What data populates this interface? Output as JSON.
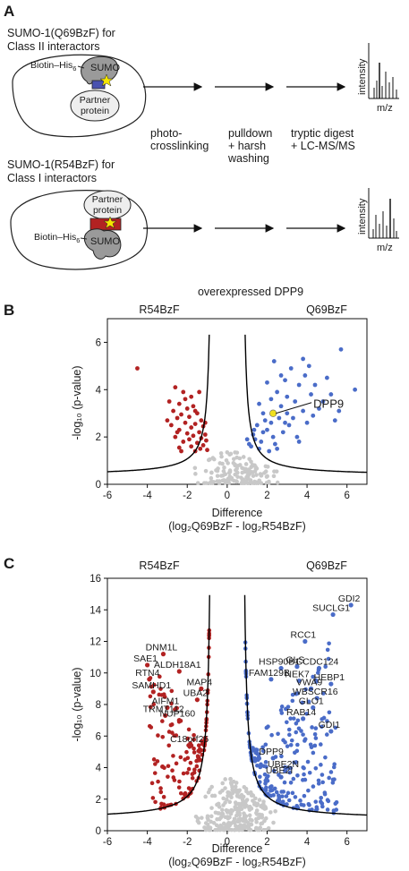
{
  "panel_a": {
    "letter": "A",
    "top": {
      "title_line1": "SUMO-1(Q69BzF) for",
      "title_line2": "Class II interactors",
      "tag_label": "Biotin–His",
      "tag_subscript": "6",
      "sumo_label": "SUMO",
      "partner_line1": "Partner",
      "partner_line2": "protein"
    },
    "bottom": {
      "title_line1": "SUMO-1(R54BzF) for",
      "title_line2": "Class I interactors",
      "tag_label": "Biotin–His",
      "tag_subscript": "6",
      "sumo_label": "SUMO",
      "partner_line1": "Partner",
      "partner_line2": "protein"
    },
    "steps": [
      {
        "line1": "photo-",
        "line2": "crosslinking"
      },
      {
        "line1": "pulldown",
        "line2": "+ harsh",
        "line3": "washing"
      },
      {
        "line1": "tryptic digest",
        "line2": "+ LC-MS/MS"
      }
    ],
    "spectrum": {
      "ylabel": "intensity",
      "xlabel": "m/z"
    },
    "colors": {
      "sumo": "#9a9a9a",
      "q69_linker": "#4a52b0",
      "r54_linker": "#b22222",
      "star": "#f5e600"
    }
  },
  "panel_b": {
    "letter": "B",
    "chart_data": {
      "type": "scatter",
      "title": "overexpressed DPP9",
      "left_group": "R54BzF",
      "right_group": "Q69BzF",
      "xlabel_line1": "Difference",
      "xlabel_line2": "(log₂Q69BzF - log₂R54BzF)",
      "ylabel": "-log₁₀ (p-value)",
      "xlim": [
        -6,
        7
      ],
      "ylim": [
        0,
        7
      ],
      "xticks": [
        "-6",
        "-4",
        "-2",
        "0",
        "2",
        "4",
        "6"
      ],
      "yticks": [
        "0",
        "2",
        "4",
        "6"
      ],
      "highlight": {
        "label": "DPP9",
        "x": 2.3,
        "y": 3.0,
        "color": "#f0e020"
      },
      "colors": {
        "left": "#b22222",
        "right": "#4a6cc8",
        "ns": "#c8c8c8",
        "cutoff": "#000000"
      },
      "left_points": [
        [
          -4.5,
          4.9
        ],
        [
          -2.6,
          4.1
        ],
        [
          -2.2,
          3.9
        ],
        [
          -1.8,
          3.7
        ],
        [
          -2.9,
          3.5
        ],
        [
          -2.4,
          3.4
        ],
        [
          -1.7,
          3.3
        ],
        [
          -2.0,
          3.2
        ],
        [
          -2.7,
          3.1
        ],
        [
          -1.5,
          3.0
        ],
        [
          -2.3,
          2.95
        ],
        [
          -1.9,
          2.85
        ],
        [
          -2.5,
          2.8
        ],
        [
          -1.3,
          2.7
        ],
        [
          -2.1,
          2.6
        ],
        [
          -1.6,
          2.55
        ],
        [
          -2.8,
          2.5
        ],
        [
          -1.2,
          2.45
        ],
        [
          -1.8,
          2.4
        ],
        [
          -2.4,
          2.3
        ],
        [
          -1.4,
          2.2
        ],
        [
          -2.0,
          2.15
        ],
        [
          -1.1,
          2.1
        ],
        [
          -1.7,
          2.05
        ],
        [
          -2.6,
          2.0
        ],
        [
          -1.3,
          1.95
        ],
        [
          -1.9,
          1.9
        ],
        [
          -1.05,
          1.85
        ],
        [
          -2.2,
          1.8
        ],
        [
          -1.5,
          1.75
        ],
        [
          -1.2,
          1.65
        ],
        [
          -1.8,
          1.6
        ],
        [
          -2.4,
          1.55
        ],
        [
          -1.35,
          1.5
        ],
        [
          -1.0,
          1.45
        ],
        [
          -1.6,
          1.4
        ],
        [
          -2.1,
          3.6
        ],
        [
          -1.4,
          3.9
        ],
        [
          -2.5,
          2.2
        ],
        [
          -3.0,
          2.7
        ],
        [
          -1.1,
          2.6
        ],
        [
          -1.6,
          3.1
        ],
        [
          -2.3,
          1.4
        ]
      ],
      "right_points": [
        [
          5.7,
          5.7
        ],
        [
          3.8,
          5.3
        ],
        [
          5.0,
          4.5
        ],
        [
          6.4,
          4.0
        ],
        [
          3.2,
          4.9
        ],
        [
          2.9,
          4.4
        ],
        [
          3.6,
          4.2
        ],
        [
          4.2,
          3.8
        ],
        [
          2.5,
          3.9
        ],
        [
          3.4,
          3.5
        ],
        [
          4.6,
          3.2
        ],
        [
          5.4,
          2.7
        ],
        [
          2.2,
          3.6
        ],
        [
          1.8,
          3.0
        ],
        [
          2.6,
          2.8
        ],
        [
          3.0,
          3.0
        ],
        [
          4.0,
          2.6
        ],
        [
          1.5,
          2.5
        ],
        [
          2.0,
          2.3
        ],
        [
          2.8,
          2.2
        ],
        [
          3.5,
          2.0
        ],
        [
          1.3,
          2.1
        ],
        [
          1.7,
          1.8
        ],
        [
          2.4,
          1.7
        ],
        [
          1.2,
          1.6
        ],
        [
          1.6,
          1.5
        ],
        [
          2.1,
          1.4
        ],
        [
          3.1,
          2.5
        ],
        [
          4.3,
          2.9
        ],
        [
          3.8,
          3.1
        ],
        [
          1.9,
          2.7
        ],
        [
          2.3,
          2.0
        ],
        [
          1.4,
          1.9
        ],
        [
          2.7,
          3.3
        ],
        [
          3.3,
          2.8
        ],
        [
          4.8,
          3.5
        ],
        [
          5.6,
          3.1
        ],
        [
          1.1,
          1.7
        ],
        [
          2.0,
          4.3
        ],
        [
          3.0,
          3.7
        ],
        [
          3.9,
          4.6
        ],
        [
          1.6,
          3.4
        ],
        [
          2.9,
          2.6
        ],
        [
          1.35,
          2.3
        ],
        [
          2.2,
          2.6
        ],
        [
          4.4,
          4.2
        ],
        [
          3.6,
          1.8
        ],
        [
          1.0,
          1.9
        ],
        [
          2.5,
          1.5
        ],
        [
          1.8,
          2.2
        ],
        [
          2.7,
          4.6
        ],
        [
          4.1,
          5.0
        ],
        [
          2.35,
          5.2
        ],
        [
          5.2,
          3.8
        ]
      ]
    }
  },
  "panel_c": {
    "letter": "C",
    "chart_data": {
      "type": "scatter",
      "left_group": "R54BzF",
      "right_group": "Q69BzF",
      "xlabel_line1": "Difference",
      "xlabel_line2": "(log₂Q69BzF - log₂R54BzF)",
      "ylabel": "-log₁₀ (p-value)",
      "xlim": [
        -6,
        7
      ],
      "ylim": [
        0,
        16
      ],
      "xticks": [
        "-6",
        "-4",
        "-2",
        "0",
        "2",
        "4",
        "6"
      ],
      "yticks": [
        "0",
        "2",
        "4",
        "6",
        "8",
        "10",
        "12",
        "14",
        "16"
      ],
      "colors": {
        "left": "#b22222",
        "right": "#4a6cc8",
        "ns": "#c8c8c8",
        "cutoff": "#000000"
      },
      "labels_left": [
        {
          "label": "DNM1L",
          "x": -3.2,
          "y": 11.2
        },
        {
          "label": "SAE1",
          "x": -4.0,
          "y": 10.5
        },
        {
          "label": "ALDH18A1",
          "x": -2.4,
          "y": 10.1
        },
        {
          "label": "RTN4",
          "x": -3.9,
          "y": 9.6
        },
        {
          "label": "MAP4",
          "x": -1.3,
          "y": 9.0
        },
        {
          "label": "SAMHD1",
          "x": -3.7,
          "y": 8.8
        },
        {
          "label": "AIFM1",
          "x": -3.0,
          "y": 7.8
        },
        {
          "label": "UBA2",
          "x": -1.5,
          "y": 8.3
        },
        {
          "label": "TRMT112",
          "x": -3.1,
          "y": 7.3
        },
        {
          "label": "NUP160",
          "x": -2.4,
          "y": 7.0
        },
        {
          "label": "C18orf25",
          "x": -1.8,
          "y": 5.4
        }
      ],
      "labels_right": [
        {
          "label": "GDI2",
          "x": 6.2,
          "y": 14.3
        },
        {
          "label": "SUCLG1",
          "x": 5.3,
          "y": 13.7
        },
        {
          "label": "RCC1",
          "x": 3.9,
          "y": 12.0
        },
        {
          "label": "HSP90B1",
          "x": 2.7,
          "y": 10.3
        },
        {
          "label": "GLS",
          "x": 3.5,
          "y": 10.4
        },
        {
          "label": "CCDC124",
          "x": 4.6,
          "y": 10.3
        },
        {
          "label": "FAM129B",
          "x": 2.2,
          "y": 9.6
        },
        {
          "label": "NEK7",
          "x": 3.6,
          "y": 9.5
        },
        {
          "label": "HEBP1",
          "x": 5.2,
          "y": 9.3
        },
        {
          "label": "VWA9",
          "x": 4.2,
          "y": 9.0
        },
        {
          "label": "WBSCR16",
          "x": 4.5,
          "y": 8.4
        },
        {
          "label": "GLO1",
          "x": 4.3,
          "y": 7.8
        },
        {
          "label": "RAB14",
          "x": 3.8,
          "y": 7.1
        },
        {
          "label": "GDI1",
          "x": 5.2,
          "y": 6.3
        },
        {
          "label": "DPP9",
          "x": 2.3,
          "y": 4.6
        },
        {
          "label": "UBE2N",
          "x": 2.9,
          "y": 3.8
        },
        {
          "label": "UBE2I",
          "x": 2.7,
          "y": 3.4
        }
      ]
    }
  }
}
